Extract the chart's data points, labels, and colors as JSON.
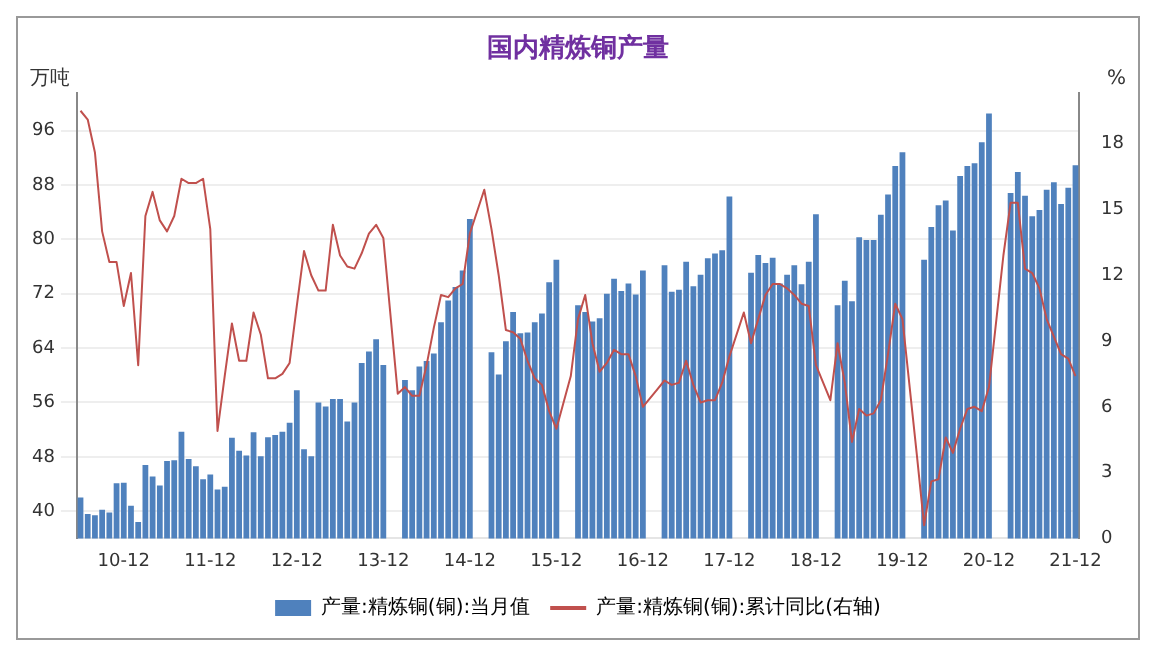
{
  "chart_data": {
    "type": "bar",
    "title": "国内精炼铜产量",
    "ylabel": "万吨",
    "y2label": "%",
    "categories": [
      null,
      null,
      null,
      null,
      null,
      null,
      "10-12",
      null,
      null,
      null,
      null,
      null,
      null,
      null,
      null,
      null,
      null,
      null,
      "11-12",
      null,
      null,
      null,
      null,
      null,
      null,
      null,
      null,
      null,
      null,
      null,
      "12-12",
      null,
      null,
      null,
      null,
      null,
      null,
      null,
      null,
      null,
      null,
      null,
      "13-12",
      null,
      null,
      null,
      null,
      null,
      null,
      null,
      null,
      null,
      null,
      null,
      "14-12",
      null,
      null,
      null,
      null,
      null,
      null,
      null,
      null,
      null,
      null,
      null,
      "15-12",
      null,
      null,
      null,
      null,
      null,
      null,
      null,
      null,
      null,
      null,
      null,
      "16-12",
      null,
      null,
      null,
      null,
      null,
      null,
      null,
      null,
      null,
      null,
      null,
      "17-12",
      null,
      null,
      null,
      null,
      null,
      null,
      null,
      null,
      null,
      null,
      null,
      "18-12",
      null,
      null,
      null,
      null,
      null,
      null,
      null,
      null,
      null,
      null,
      null,
      "19-12",
      null,
      null,
      null,
      null,
      null,
      null,
      null,
      null,
      null,
      null,
      null,
      "20-12",
      null,
      null,
      null,
      null,
      null,
      null,
      null,
      null,
      null,
      null,
      null,
      "21-12"
    ],
    "series": [
      {
        "name": "产量:精炼铜(铜):当月值",
        "color": "#4f81bd",
        "values": [
          42.0,
          39.6,
          39.4,
          40.2,
          39.8,
          44.1,
          44.2,
          40.8,
          38.4,
          46.8,
          45.1,
          43.8,
          47.4,
          47.5,
          51.7,
          47.7,
          46.6,
          44.7,
          45.4,
          43.2,
          43.6,
          50.8,
          48.9,
          48.2,
          51.6,
          48.1,
          50.9,
          51.2,
          51.7,
          53.0,
          57.8,
          49.1,
          48.1,
          56.0,
          55.4,
          56.5,
          56.5,
          53.2,
          56.0,
          61.8,
          63.5,
          65.3,
          61.5,
          null,
          null,
          59.3,
          57.8,
          61.3,
          62.1,
          63.2,
          67.8,
          71.0,
          73.0,
          75.4,
          83.0,
          null,
          null,
          63.4,
          60.1,
          65.0,
          69.3,
          66.2,
          66.3,
          67.8,
          69.1,
          73.7,
          77.0,
          null,
          null,
          70.3,
          69.3,
          67.9,
          68.4,
          72.0,
          74.2,
          72.4,
          73.5,
          71.9,
          75.4,
          null,
          null,
          76.2,
          72.3,
          72.6,
          76.7,
          73.1,
          74.8,
          77.2,
          77.9,
          78.4,
          86.3,
          null,
          null,
          75.1,
          77.7,
          76.5,
          77.3,
          73.5,
          74.8,
          76.2,
          73.4,
          76.7,
          83.7,
          null,
          null,
          70.3,
          73.9,
          70.9,
          80.3,
          79.9,
          79.9,
          83.6,
          86.6,
          90.8,
          92.8,
          null,
          null,
          77.0,
          81.8,
          85.0,
          85.7,
          81.3,
          89.3,
          90.8,
          91.2,
          94.3,
          98.5,
          null,
          null,
          86.8,
          89.9,
          86.4,
          83.4,
          84.3,
          87.3,
          88.4,
          85.2,
          87.6,
          90.9
        ]
      },
      {
        "name": "产量:精炼铜(铜):累计同比(右轴)",
        "type": "line",
        "axis": "y2",
        "color": "#c0504d",
        "values": [
          19.5,
          19.1,
          17.6,
          14.0,
          12.6,
          12.6,
          10.6,
          12.1,
          7.9,
          14.7,
          15.8,
          14.5,
          14.0,
          14.7,
          16.4,
          16.2,
          16.2,
          16.4,
          14.1,
          4.9,
          7.4,
          9.8,
          8.1,
          8.1,
          10.3,
          9.3,
          7.3,
          7.3,
          7.5,
          8.0,
          10.6,
          13.1,
          12.0,
          11.3,
          11.3,
          14.3,
          12.9,
          12.4,
          12.3,
          13.0,
          13.9,
          14.3,
          13.7,
          null,
          6.6,
          6.9,
          6.5,
          6.5,
          7.9,
          9.6,
          11.1,
          11.0,
          11.4,
          11.6,
          13.9,
          null,
          15.9,
          14.1,
          12.0,
          9.5,
          9.4,
          9.1,
          8.1,
          7.3,
          7.0,
          5.8,
          5.0,
          null,
          7.4,
          10.0,
          11.1,
          8.9,
          7.6,
          8.0,
          8.6,
          8.4,
          8.4,
          7.4,
          6.0,
          null,
          6.8,
          7.2,
          7.0,
          7.1,
          8.1,
          7.0,
          6.2,
          6.3,
          6.3,
          7.1,
          8.3,
          null,
          10.3,
          8.9,
          10.0,
          11.1,
          11.6,
          11.6,
          11.4,
          11.1,
          10.7,
          10.6,
          7.9,
          null,
          6.3,
          8.9,
          7.1,
          4.4,
          5.9,
          5.6,
          5.7,
          6.3,
          8.4,
          10.7,
          10.0,
          null,
          3.8,
          0.6,
          2.6,
          2.7,
          4.6,
          3.9,
          5.0,
          5.9,
          6.0,
          5.8,
          6.9,
          null,
          12.9,
          15.3,
          15.3,
          12.3,
          12.1,
          11.4,
          10.0,
          9.2,
          8.4,
          8.2,
          7.4
        ]
      }
    ],
    "ylim": [
      36,
      101.5
    ],
    "yticks": [
      40,
      48,
      56,
      64,
      72,
      80,
      88,
      96
    ],
    "y2lim": [
      0,
      20.3
    ],
    "y2ticks": [
      0,
      3,
      6,
      9,
      12,
      15,
      18
    ],
    "grid": "y",
    "legend": "bottom",
    "marker": "none",
    "line_style": "solid"
  }
}
